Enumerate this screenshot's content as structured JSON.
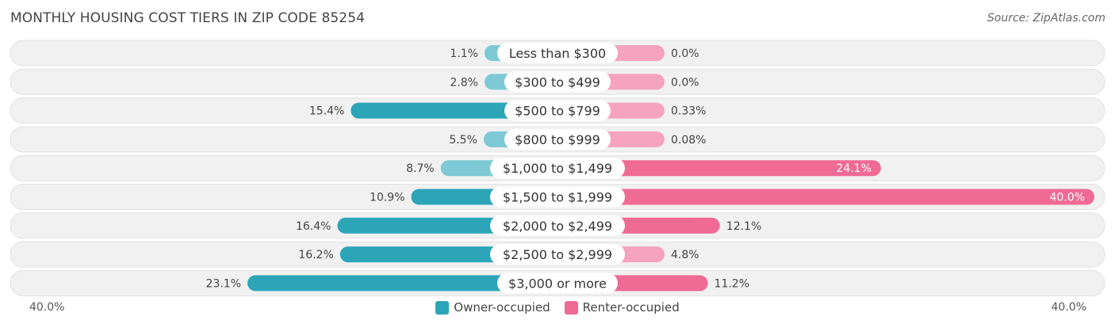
{
  "chart_data": {
    "type": "bar",
    "title": "MONTHLY HOUSING COST TIERS IN ZIP CODE 85254",
    "source": "Source: ZipAtlas.com",
    "categories": [
      "Less than $300",
      "$300 to $499",
      "$500 to $799",
      "$800 to $999",
      "$1,000 to $1,499",
      "$1,500 to $1,999",
      "$2,000 to $2,499",
      "$2,500 to $2,999",
      "$3,000 or more"
    ],
    "series": [
      {
        "name": "Owner-occupied",
        "values": [
          1.1,
          2.8,
          15.4,
          5.5,
          8.7,
          10.9,
          16.4,
          16.2,
          23.1
        ],
        "labels": [
          "1.1%",
          "2.8%",
          "15.4%",
          "5.5%",
          "8.7%",
          "10.9%",
          "16.4%",
          "16.2%",
          "23.1%"
        ]
      },
      {
        "name": "Renter-occupied",
        "values": [
          0.0,
          0.0,
          0.33,
          0.08,
          24.1,
          40.0,
          12.1,
          4.8,
          11.2
        ],
        "labels": [
          "0.0%",
          "0.0%",
          "0.33%",
          "0.08%",
          "24.1%",
          "40.0%",
          "12.1%",
          "4.8%",
          "11.2%"
        ]
      }
    ],
    "xlim": [
      -40,
      40
    ],
    "axis_labels": {
      "left": "40.0%",
      "right": "40.0%"
    },
    "legend_position": "bottom-center",
    "colors": {
      "owner": "#2ca5b8",
      "owner_light": "#7dcad6",
      "renter": "#ef6a95",
      "renter_light": "#f5a3bf",
      "row_bg": "#f1f1f1",
      "row_border": "#e2e2e2"
    }
  }
}
